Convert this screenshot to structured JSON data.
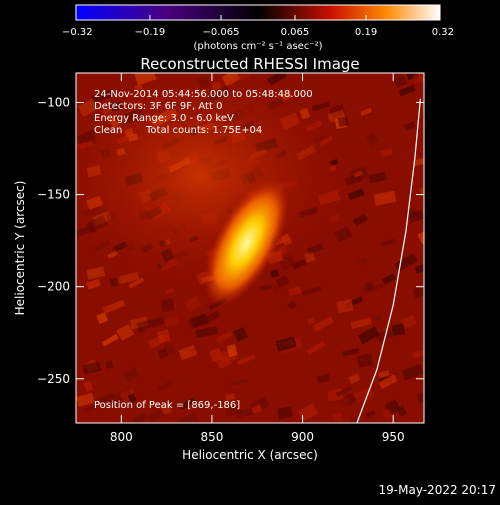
{
  "chart_data": {
    "type": "heatmap",
    "title": "Reconstructed RHESSI Image",
    "xlabel": "Heliocentric X (arcsec)",
    "ylabel": "Heliocentric Y (arcsec)",
    "xlim": [
      775,
      967
    ],
    "ylim": [
      -274,
      -84
    ],
    "x_ticks": [
      800,
      850,
      900,
      950
    ],
    "y_ticks": [
      -100,
      -150,
      -200,
      -250
    ],
    "x_tick_labels": [
      "800",
      "850",
      "900",
      "950"
    ],
    "y_tick_labels": [
      "−100",
      "−150",
      "−200",
      "−250"
    ],
    "colorbar": {
      "range": [
        -0.32,
        0.32
      ],
      "ticks": [
        -0.32,
        -0.19,
        -0.065,
        0.065,
        0.19,
        0.32
      ],
      "tick_labels": [
        "−0.32",
        "−0.19",
        "−0.065",
        "0.065",
        "0.19",
        "0.32"
      ],
      "units": "(photons cm⁻² s⁻¹ asec⁻²)"
    },
    "peak": [
      869,
      -186
    ],
    "limb_curve": [
      [
        930,
        -274
      ],
      [
        941,
        -245
      ],
      [
        950,
        -210
      ],
      [
        957,
        -170
      ],
      [
        962,
        -130
      ],
      [
        965,
        -98
      ]
    ]
  },
  "annotations": {
    "time_range": "24-Nov-2014 05:44:56.000 to 05:48:48.000",
    "detectors": "Detectors: 3F 6F 9F, Att 0",
    "energy": "Energy Range: 3.0 - 6.0 keV",
    "clean": "Clean",
    "counts": "Total counts: 1.75E+04",
    "peak_text": "Position of Peak = [869,-186]"
  },
  "footer": {
    "timestamp": "19-May-2022 20:17"
  }
}
